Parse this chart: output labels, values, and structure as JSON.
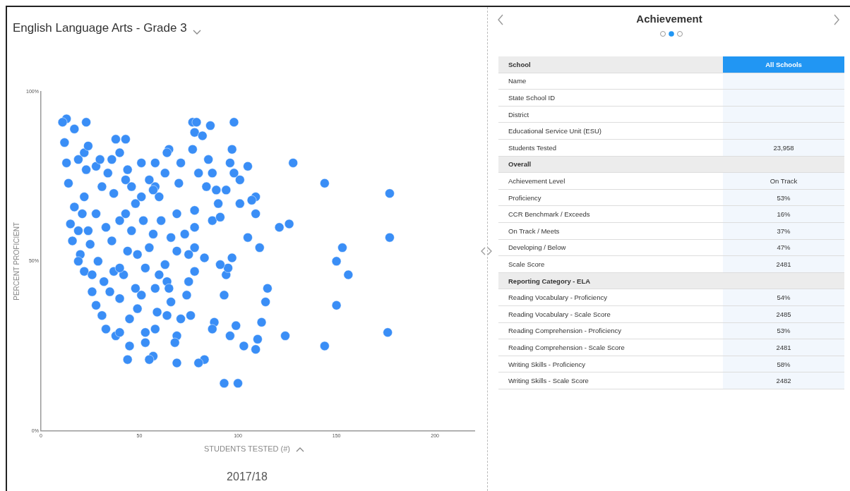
{
  "chart_data": [
    {
      "type": "scatter",
      "title": "English Language Arts - Grade 3",
      "xlabel": "STUDENTS TESTED (#)",
      "ylabel": "PERCENT PROFICIENT",
      "annotations": [
        "2017/18"
      ],
      "color": "#3a8ef6",
      "marker": "circle",
      "xlim": [
        0,
        220
      ],
      "xticks": [
        0,
        50,
        100,
        150,
        200
      ],
      "ylim": [
        0,
        100
      ],
      "yticks": [
        {
          "value": 0,
          "label": "0%"
        },
        {
          "value": 50,
          "label": "50%"
        },
        {
          "value": 100,
          "label": "100%"
        }
      ],
      "x": [
        177,
        177,
        176,
        144,
        144,
        153,
        150,
        156,
        150,
        128,
        121,
        126,
        124,
        98,
        93,
        100,
        105,
        101,
        109,
        107,
        101,
        109,
        105,
        111,
        115,
        114,
        112,
        110,
        109,
        103,
        99,
        96,
        93,
        94,
        97,
        95,
        91,
        88,
        87,
        83,
        80,
        69,
        77,
        79,
        86,
        78,
        82,
        77,
        97,
        96,
        85,
        87,
        80,
        98,
        84,
        89,
        94,
        90,
        78,
        87,
        91,
        78,
        83,
        78,
        78,
        75,
        74,
        76,
        69,
        68,
        71,
        66,
        64,
        63,
        69,
        61,
        70,
        65,
        64,
        71,
        58,
        58,
        60,
        51,
        55,
        44,
        43,
        36,
        38,
        43,
        40,
        34,
        28,
        23,
        31,
        22,
        17,
        14,
        13,
        12,
        13,
        11,
        17,
        23,
        22,
        24,
        19,
        30,
        19,
        20,
        22,
        26,
        28,
        33,
        38,
        40,
        45,
        45,
        44,
        53,
        53,
        57,
        55,
        59,
        51,
        48,
        42,
        37,
        32,
        29,
        25,
        24,
        21,
        28,
        33,
        36,
        40,
        46,
        43,
        48,
        52,
        57,
        55,
        49,
        44,
        40,
        53,
        60,
        65,
        58,
        64,
        58,
        49,
        40,
        35,
        31,
        37,
        46,
        51,
        15,
        16,
        19,
        26,
        75,
        73,
        66,
        69,
        57,
        63
      ],
      "values": [
        70,
        57,
        29,
        73,
        25,
        54,
        50,
        46,
        37,
        79,
        60,
        61,
        28,
        91,
        14,
        14,
        78,
        74,
        69,
        68,
        67,
        64,
        57,
        54,
        42,
        38,
        32,
        27,
        24,
        25,
        31,
        28,
        40,
        46,
        51,
        48,
        49,
        32,
        30,
        21,
        20,
        20,
        91,
        91,
        90,
        88,
        87,
        83,
        83,
        79,
        80,
        76,
        76,
        76,
        72,
        71,
        71,
        67,
        65,
        62,
        63,
        60,
        51,
        54,
        47,
        44,
        40,
        34,
        28,
        26,
        33,
        38,
        44,
        49,
        53,
        62,
        73,
        83,
        82,
        79,
        79,
        72,
        69,
        69,
        74,
        77,
        74,
        80,
        86,
        86,
        82,
        76,
        78,
        77,
        72,
        69,
        66,
        73,
        79,
        85,
        92,
        91,
        89,
        91,
        82,
        84,
        80,
        80,
        59,
        52,
        47,
        41,
        37,
        30,
        28,
        29,
        33,
        25,
        21,
        29,
        26,
        22,
        21,
        35,
        40,
        42,
        46,
        47,
        44,
        50,
        55,
        59,
        64,
        64,
        60,
        56,
        62,
        59,
        64,
        67,
        62,
        58,
        54,
        52,
        53,
        48,
        48,
        46,
        42,
        42,
        34,
        30,
        36,
        39,
        41,
        34,
        70,
        72,
        79,
        61,
        56,
        50,
        46,
        52,
        58,
        57,
        64,
        71,
        76
      ]
    },
    {
      "type": "other",
      "title": "Achievement"
    },
    {
      "type": "other",
      "title": "School",
      "subtitle": "All Schools",
      "categories": [
        "Name",
        "State School ID",
        "District",
        "Educational Service Unit (ESU)",
        "Students Tested"
      ],
      "value_labels": [
        null,
        null,
        null,
        null,
        "23,958"
      ]
    },
    {
      "type": "other",
      "title": "Overall",
      "categories": [
        "Achievement Level",
        "Proficiency",
        "CCR Benchmark / Exceeds",
        "On Track / Meets",
        "Developing / Below",
        "Scale Score"
      ],
      "value_labels": [
        "On Track",
        "53%",
        "16%",
        "37%",
        "47%",
        "2481"
      ]
    },
    {
      "type": "other",
      "title": "Reporting Category - ELA",
      "categories": [
        "Reading Vocabulary - Proficiency",
        "Reading Vocabulary - Scale Score",
        "Reading Comprehension - Proficiency",
        "Reading Comprehension - Scale Score",
        "Writing Skills - Proficiency",
        "Writing Skills - Scale Score"
      ],
      "value_labels": [
        "54%",
        "2485",
        "53%",
        "2481",
        "58%",
        "2482"
      ]
    }
  ]
}
